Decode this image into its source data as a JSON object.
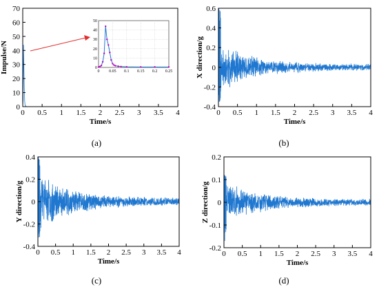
{
  "chart_data": [
    {
      "id": "a",
      "panel_label": "(a)",
      "type": "line",
      "xlabel": "Time/s",
      "ylabel": "Impulse/N",
      "xlim": [
        0,
        4
      ],
      "ylim": [
        0,
        70
      ],
      "xticks": [
        "0",
        "0.5",
        "1",
        "1.5",
        "2",
        "2.5",
        "3",
        "3.5",
        "4"
      ],
      "yticks": [
        "0",
        "10",
        "20",
        "30",
        "40",
        "50",
        "60",
        "70"
      ],
      "series": [
        {
          "x": [
            0,
            0.01,
            0.02,
            0.03,
            0.04,
            0.05,
            0.06,
            0.08,
            0.1,
            4.0
          ],
          "y": [
            0,
            5,
            44,
            28,
            14,
            4,
            1,
            0.3,
            0,
            0
          ]
        }
      ],
      "color": "#1f77d0",
      "inset": {
        "xlim": [
          0,
          0.25
        ],
        "ylim": [
          0,
          50
        ],
        "xticks": [
          "0",
          "0.05",
          "0.1",
          "0.15",
          "0.2",
          "0.25"
        ],
        "yticks": [
          "0",
          "10",
          "20",
          "30",
          "40",
          "50"
        ],
        "marker_color": "#c000c0",
        "series": [
          {
            "x": [
              0,
              0.005,
              0.01,
              0.015,
              0.02,
              0.025,
              0.03,
              0.035,
              0.04,
              0.045,
              0.05,
              0.055,
              0.06,
              0.07,
              0.08,
              0.1,
              0.15,
              0.2,
              0.25
            ],
            "y": [
              0.5,
              1,
              2,
              6,
              15,
              44,
              30,
              24,
              16,
              8,
              4,
              2.5,
              1.8,
              1.2,
              0.9,
              0.6,
              0.5,
              0.5,
              0.5
            ]
          }
        ]
      }
    },
    {
      "id": "b",
      "panel_label": "(b)",
      "type": "line",
      "xlabel": "Time/s",
      "ylabel": "X direction/g",
      "xlim": [
        0,
        4
      ],
      "ylim": [
        -0.4,
        0.6
      ],
      "xticks": [
        "0",
        "0.5",
        "1",
        "1.5",
        "2",
        "2.5",
        "3",
        "3.5",
        "4"
      ],
      "yticks": [
        "-0.4",
        "-0.2",
        "0",
        "0.2",
        "0.4",
        "0.6"
      ],
      "color": "#1f77d0",
      "signal": {
        "peak_pos": 0.6,
        "peak_neg": -0.35,
        "amp_early": 0.2,
        "amp_late": 0.025,
        "decay": 1.2,
        "seed": 11
      }
    },
    {
      "id": "c",
      "panel_label": "(c)",
      "type": "line",
      "xlabel": "Time/s",
      "ylabel": "Y direction/g",
      "xlim": [
        0,
        4
      ],
      "ylim": [
        -0.4,
        0.4
      ],
      "xticks": [
        "0",
        "0.5",
        "1",
        "1.5",
        "2",
        "2.5",
        "3",
        "3.5",
        "4"
      ],
      "yticks": [
        "-0.4",
        "-0.2",
        "0",
        "0.2",
        "0.4"
      ],
      "color": "#1f77d0",
      "signal": {
        "peak_pos": 0.4,
        "peak_neg": -0.32,
        "amp_early": 0.2,
        "amp_late": 0.025,
        "decay": 1.1,
        "seed": 23
      }
    },
    {
      "id": "d",
      "panel_label": "(d)",
      "type": "line",
      "xlabel": "Time/s",
      "ylabel": "Z direction/g",
      "xlim": [
        0,
        4
      ],
      "ylim": [
        -0.2,
        0.2
      ],
      "xticks": [
        "0",
        "0.5",
        "1",
        "1.5",
        "2",
        "2.5",
        "3",
        "3.5",
        "4"
      ],
      "yticks": [
        "-0.2",
        "-0.1",
        "0",
        "0.1",
        "0.2"
      ],
      "color": "#1f77d0",
      "signal": {
        "peak_pos": 0.12,
        "peak_neg": -0.17,
        "amp_early": 0.07,
        "amp_late": 0.01,
        "decay": 1.0,
        "seed": 37
      }
    }
  ]
}
